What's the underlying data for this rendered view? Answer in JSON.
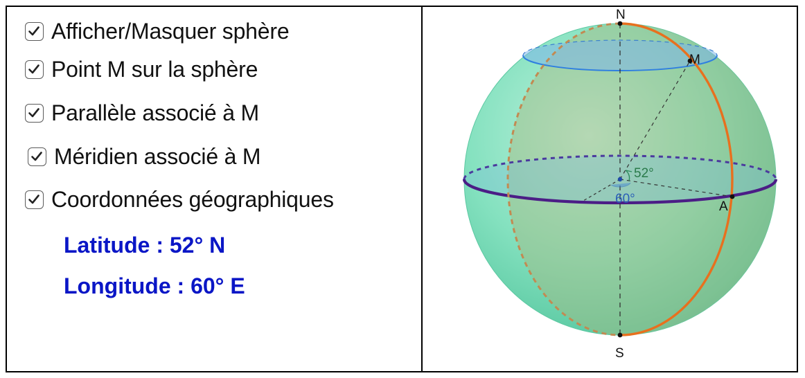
{
  "panel": {
    "options": [
      {
        "label": "Afficher/Masquer sphère",
        "checked": true
      },
      {
        "label": "Point M sur la sphère",
        "checked": true
      },
      {
        "label": "Parallèle associé à M",
        "checked": true
      },
      {
        "label": "Méridien associé à M",
        "checked": true
      },
      {
        "label": "Coordonnées géographiques",
        "checked": true
      }
    ],
    "latitude": "Latitude : 52° N",
    "longitude": "Longitude : 60° E"
  },
  "globe": {
    "north_label": "N",
    "south_label": "S",
    "point_m_label": "M",
    "point_a_label": "A",
    "latitude_angle_label": "52°",
    "longitude_angle_label": "60°",
    "colors": {
      "sphere": "#6fd9b4",
      "meridian": "#e8701e",
      "equator": "#4b1d86",
      "parallel": "#2f7fe0",
      "coordinates_text": "#0a16c6"
    }
  }
}
